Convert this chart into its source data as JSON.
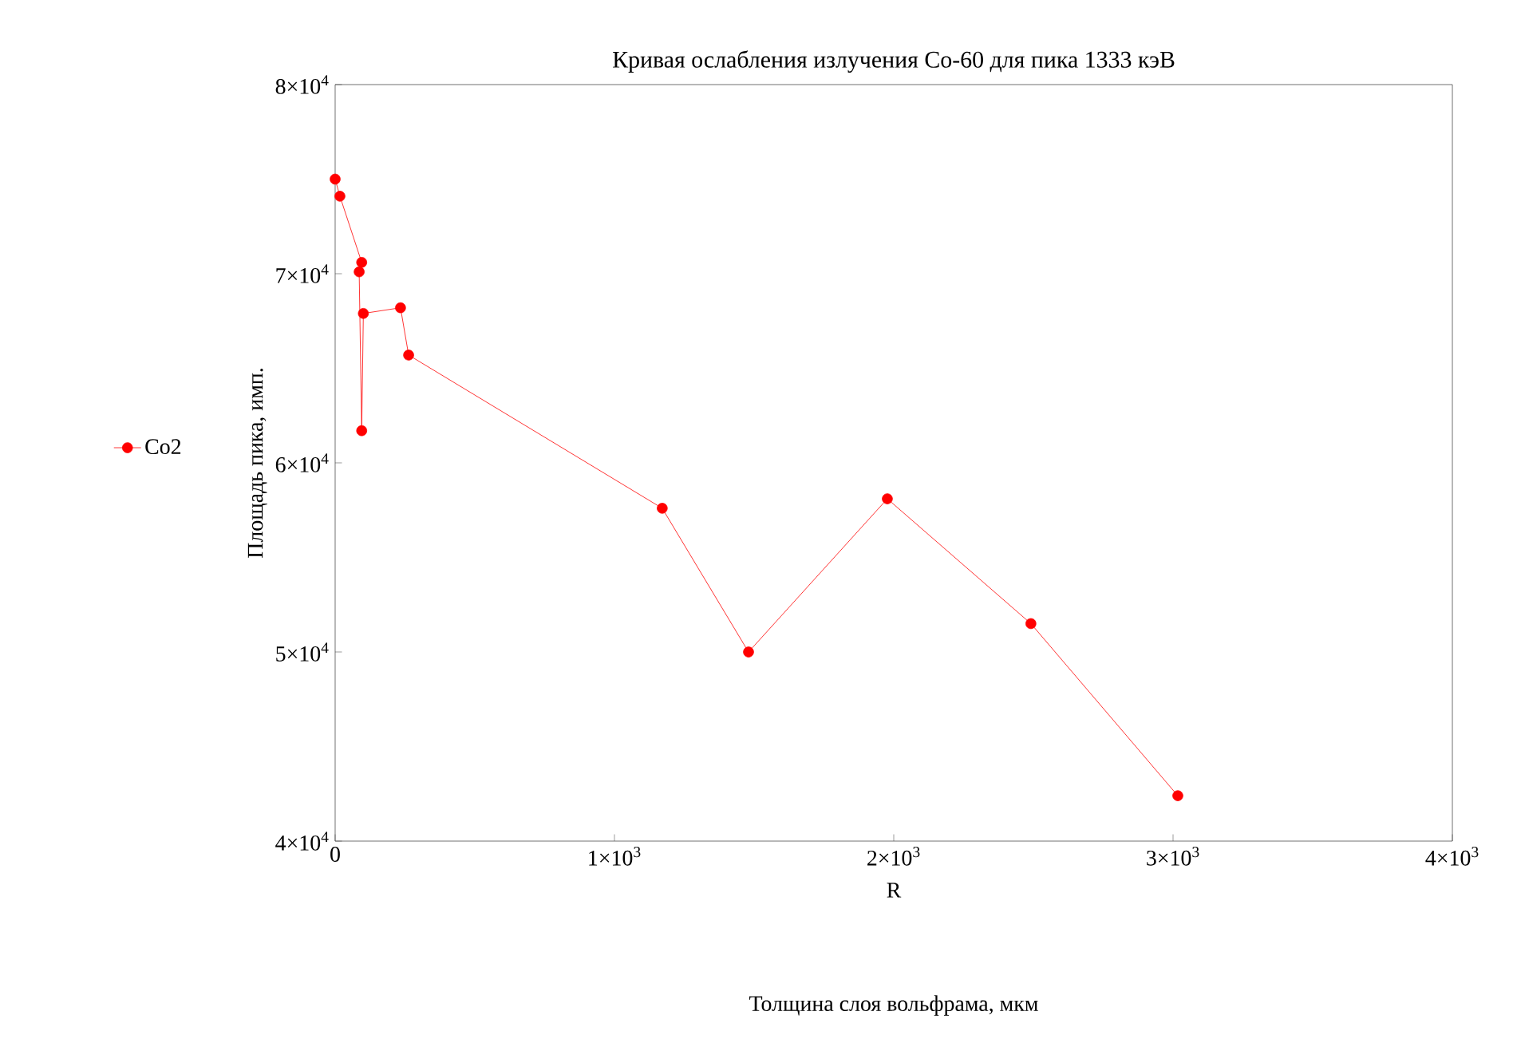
{
  "chart_data": {
    "type": "line",
    "title": "Кривая ослабления излучения Co-60 для пика 1333 кэВ",
    "xlabel": "R",
    "ylabel": "Площадь пика, имп.",
    "annotations": [
      "Толщина слоя вольфрама, мкм"
    ],
    "series": [
      {
        "name": "Co2",
        "color": "#ff0000",
        "x": [
          0,
          17,
          95,
          86,
          95,
          101,
          234,
          263,
          1171,
          1480,
          1977,
          2491,
          3017
        ],
        "values": [
          75000,
          74100,
          70600,
          70100,
          61700,
          67900,
          68200,
          65700,
          57600,
          50000,
          58100,
          51500,
          42400
        ]
      }
    ],
    "xlim": [
      0,
      4000
    ],
    "ylim": [
      40000,
      80000
    ],
    "xticks": [
      0,
      {
        "value": 1000,
        "label": "1×10$^{3}$"
      },
      {
        "value": 2000,
        "label": "2×10$^{3}$"
      },
      {
        "value": 3000,
        "label": "3×10$^{3}$"
      },
      {
        "value": 4000,
        "label": "4×10$^{3}$"
      }
    ],
    "yticks": [
      {
        "value": 40000,
        "label": "4×10$^{4}$"
      },
      {
        "value": 50000,
        "label": "5×10$^{4}$"
      },
      {
        "value": 60000,
        "label": "6×10$^{4}$"
      },
      {
        "value": 70000,
        "label": "7×10$^{4}$"
      },
      {
        "value": 80000,
        "label": "8×10$^{4}$"
      }
    ],
    "grid": false,
    "legend": "left",
    "marker": "circle",
    "line_style": "solid"
  }
}
